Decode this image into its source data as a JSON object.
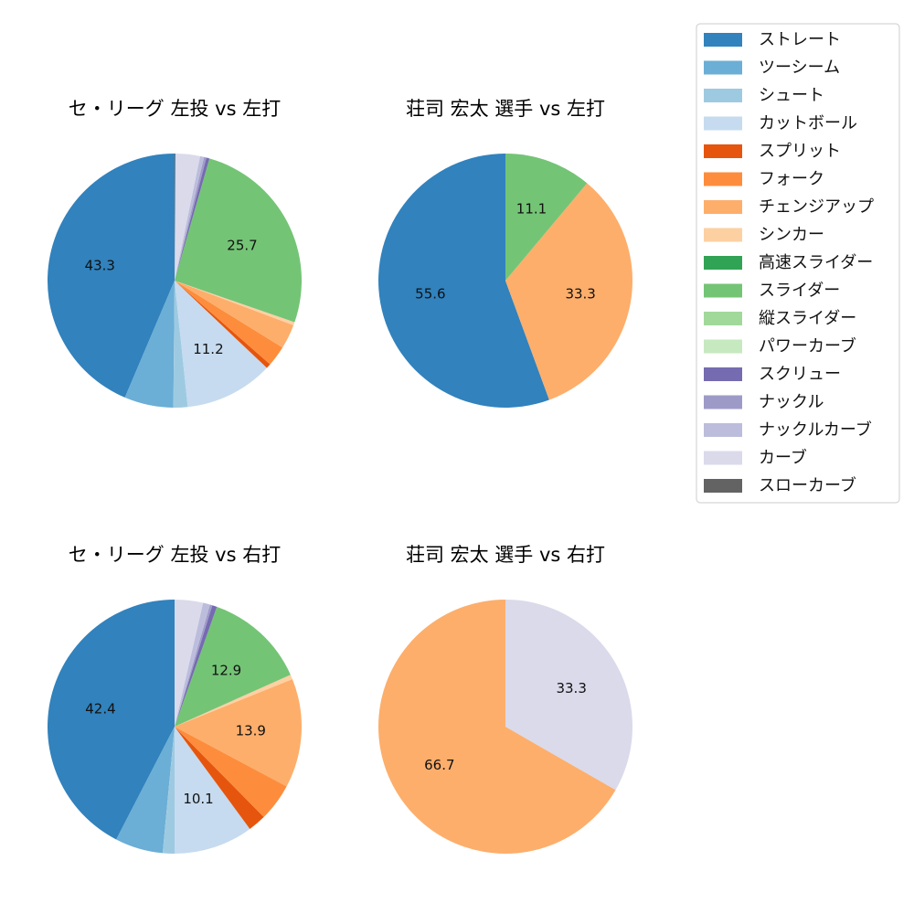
{
  "legend": {
    "items": [
      {
        "label": "ストレート",
        "color": "#3182bd"
      },
      {
        "label": "ツーシーム",
        "color": "#6baed6"
      },
      {
        "label": "シュート",
        "color": "#9ecae1"
      },
      {
        "label": "カットボール",
        "color": "#c6dbef"
      },
      {
        "label": "スプリット",
        "color": "#e6550d"
      },
      {
        "label": "フォーク",
        "color": "#fd8d3c"
      },
      {
        "label": "チェンジアップ",
        "color": "#fdae6b"
      },
      {
        "label": "シンカー",
        "color": "#fdd0a2"
      },
      {
        "label": "高速スライダー",
        "color": "#31a354"
      },
      {
        "label": "スライダー",
        "color": "#74c476"
      },
      {
        "label": "縦スライダー",
        "color": "#a1d99b"
      },
      {
        "label": "パワーカーブ",
        "color": "#c7e9c0"
      },
      {
        "label": "スクリュー",
        "color": "#756bb1"
      },
      {
        "label": "ナックル",
        "color": "#9e9ac8"
      },
      {
        "label": "ナックルカーブ",
        "color": "#bcbddc"
      },
      {
        "label": "カーブ",
        "color": "#dadaeb"
      },
      {
        "label": "スローカーブ",
        "color": "#636363"
      }
    ]
  },
  "chart_data": [
    {
      "type": "pie",
      "title": "セ・リーグ 左投 vs 左打",
      "slices": [
        {
          "name": "ストレート",
          "value": 43.3,
          "label": "43.3"
        },
        {
          "name": "ツーシーム",
          "value": 6.2,
          "label": ""
        },
        {
          "name": "シュート",
          "value": 1.8,
          "label": ""
        },
        {
          "name": "カットボール",
          "value": 11.2,
          "label": "11.2"
        },
        {
          "name": "スプリット",
          "value": 0.6,
          "label": ""
        },
        {
          "name": "フォーク",
          "value": 2.6,
          "label": ""
        },
        {
          "name": "チェンジアップ",
          "value": 3.1,
          "label": ""
        },
        {
          "name": "シンカー",
          "value": 0.4,
          "label": ""
        },
        {
          "name": "スライダー",
          "value": 25.7,
          "label": "25.7"
        },
        {
          "name": "スクリュー",
          "value": 0.4,
          "label": ""
        },
        {
          "name": "ナックル",
          "value": 0.3,
          "label": ""
        },
        {
          "name": "ナックルカーブ",
          "value": 0.5,
          "label": ""
        },
        {
          "name": "カーブ",
          "value": 3.1,
          "label": ""
        },
        {
          "name": "スローカーブ",
          "value": 0.1,
          "label": ""
        }
      ]
    },
    {
      "type": "pie",
      "title": "荘司 宏太 選手 vs 左打",
      "slices": [
        {
          "name": "ストレート",
          "value": 55.6,
          "label": "55.6"
        },
        {
          "name": "チェンジアップ",
          "value": 33.3,
          "label": "33.3"
        },
        {
          "name": "スライダー",
          "value": 11.1,
          "label": "11.1"
        }
      ]
    },
    {
      "type": "pie",
      "title": "セ・リーグ 左投 vs 右打",
      "slices": [
        {
          "name": "ストレート",
          "value": 42.4,
          "label": "42.4"
        },
        {
          "name": "ツーシーム",
          "value": 6.1,
          "label": ""
        },
        {
          "name": "シュート",
          "value": 1.5,
          "label": ""
        },
        {
          "name": "カットボール",
          "value": 10.1,
          "label": "10.1"
        },
        {
          "name": "スプリット",
          "value": 2.3,
          "label": ""
        },
        {
          "name": "フォーク",
          "value": 4.8,
          "label": ""
        },
        {
          "name": "チェンジアップ",
          "value": 13.9,
          "label": "13.9"
        },
        {
          "name": "シンカー",
          "value": 0.6,
          "label": ""
        },
        {
          "name": "スライダー",
          "value": 12.9,
          "label": "12.9"
        },
        {
          "name": "スクリュー",
          "value": 0.6,
          "label": ""
        },
        {
          "name": "ナックル",
          "value": 0.3,
          "label": ""
        },
        {
          "name": "ナックルカーブ",
          "value": 0.9,
          "label": ""
        },
        {
          "name": "カーブ",
          "value": 3.6,
          "label": ""
        }
      ]
    },
    {
      "type": "pie",
      "title": "荘司 宏太 選手 vs 右打",
      "slices": [
        {
          "name": "チェンジアップ",
          "value": 66.7,
          "label": "66.7"
        },
        {
          "name": "カーブ",
          "value": 33.3,
          "label": "33.3"
        }
      ]
    }
  ]
}
